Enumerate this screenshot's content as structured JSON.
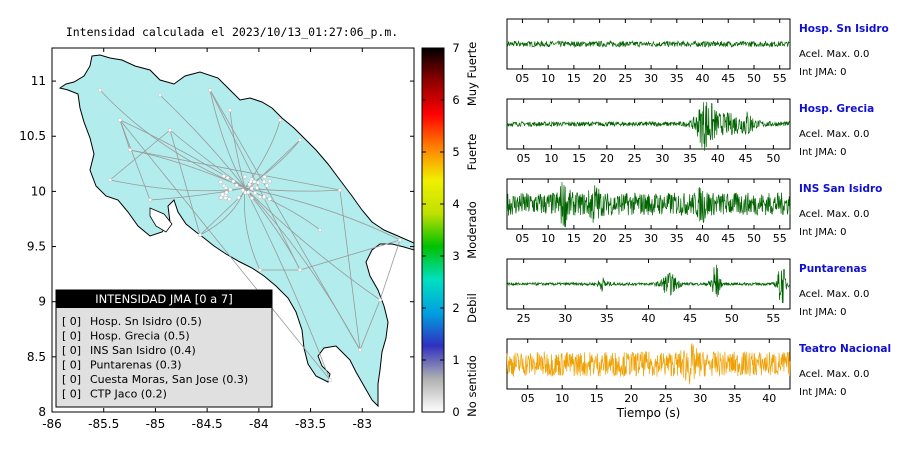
{
  "map": {
    "title": "Intensidad calculada el 2023/10/13_01:27:06_p.m.",
    "xticks": [
      "-86",
      "-85.5",
      "-85",
      "-84.5",
      "-84",
      "-83.5",
      "-83"
    ],
    "yticks": [
      "11",
      "10.5",
      "10",
      "9.5",
      "9",
      "8.5",
      "8"
    ],
    "colors": {
      "land": "#b3ecec",
      "roads": "#999999",
      "border": "#000000"
    },
    "colorbar": {
      "ticks": [
        "0",
        "1",
        "2",
        "3",
        "4",
        "5",
        "6",
        "7"
      ],
      "labels": [
        "No sentido",
        "Debil",
        "Moderado",
        "Fuerte",
        "Muy Fuerte"
      ],
      "stops": [
        "#ffffff",
        "#b0b0b0",
        "#3030c0",
        "#00a0e0",
        "#00e0c0",
        "#00c000",
        "#c0e000",
        "#f0f000",
        "#ff8000",
        "#ff0000",
        "#900000",
        "#000000"
      ]
    },
    "legend": {
      "title": "INTENSIDAD JMA [0 a 7]",
      "entries": [
        {
          "badge": "[ 0]",
          "text": "Hosp. Sn Isidro (0.5)"
        },
        {
          "badge": "[ 0]",
          "text": "Hosp. Grecia (0.5)"
        },
        {
          "badge": "[ 0]",
          "text": "INS San Isidro (0.4)"
        },
        {
          "badge": "[ 0]",
          "text": "Puntarenas (0.3)"
        },
        {
          "badge": "[ 0]",
          "text": "Cuesta Moras, San Jose (0.3)"
        },
        {
          "badge": "[ 0]",
          "text": "CTP Jaco (0.2)"
        }
      ]
    }
  },
  "chart_data": [
    {
      "type": "line",
      "title": "Hosp. Sn Isidro",
      "info": [
        "Acel. Max. 0.0",
        "Int JMA: 0"
      ],
      "xlim": [
        2,
        57
      ],
      "xticks": [
        "05",
        "10",
        "15",
        "20",
        "25",
        "30",
        "35",
        "40",
        "45",
        "50",
        "55"
      ],
      "color": "#006400",
      "amplitude": 0.12,
      "bursts": []
    },
    {
      "type": "line",
      "title": "Hosp. Grecia",
      "info": [
        "Acel. Max. 0.0",
        "Int JMA: 0"
      ],
      "xlim": [
        2,
        53
      ],
      "xticks": [
        "05",
        "10",
        "15",
        "20",
        "25",
        "30",
        "35",
        "40",
        "45",
        "50"
      ],
      "color": "#006400",
      "amplitude": 0.1,
      "bursts": [
        {
          "t": 37.8,
          "amp": 1.0,
          "w": 1.6
        },
        {
          "t": 42,
          "amp": 0.4,
          "w": 4
        },
        {
          "t": 45.5,
          "amp": 0.35,
          "w": 0.8
        }
      ]
    },
    {
      "type": "line",
      "title": "INS San Isidro",
      "info": [
        "Acel. Max. 0.0",
        "Int JMA: 0"
      ],
      "xlim": [
        2,
        57
      ],
      "xticks": [
        "05",
        "10",
        "15",
        "20",
        "25",
        "30",
        "35",
        "40",
        "45",
        "50",
        "55"
      ],
      "color": "#006400",
      "amplitude": 0.5,
      "bursts": [
        {
          "t": 13,
          "amp": 0.6,
          "w": 1
        },
        {
          "t": 19,
          "amp": 0.5,
          "w": 1
        },
        {
          "t": 40,
          "amp": 0.4,
          "w": 1
        }
      ]
    },
    {
      "type": "line",
      "title": "Puntarenas",
      "info": [
        "Acel. Max. 0.0",
        "Int JMA: 0"
      ],
      "xlim": [
        23,
        57
      ],
      "xticks": [
        "25",
        "30",
        "35",
        "40",
        "45",
        "50",
        "55"
      ],
      "color": "#006400",
      "amplitude": 0.06,
      "bursts": [
        {
          "t": 34.5,
          "amp": 0.25,
          "w": 0.6
        },
        {
          "t": 42.5,
          "amp": 0.45,
          "w": 1
        },
        {
          "t": 48,
          "amp": 1.0,
          "w": 0.5
        },
        {
          "t": 56,
          "amp": 0.9,
          "w": 0.5
        }
      ]
    },
    {
      "type": "line",
      "title": "Teatro Nacional",
      "info": [
        "Acel. Max. 0.0",
        "Int JMA: 0"
      ],
      "xlim": [
        2,
        43
      ],
      "xticks": [
        "05",
        "10",
        "15",
        "20",
        "25",
        "30",
        "35",
        "40"
      ],
      "xlabel": "Tiempo (s)",
      "color": "#f0a000",
      "amplitude": 0.55,
      "bursts": [
        {
          "t": 28.5,
          "amp": 0.4,
          "w": 1
        }
      ]
    }
  ]
}
